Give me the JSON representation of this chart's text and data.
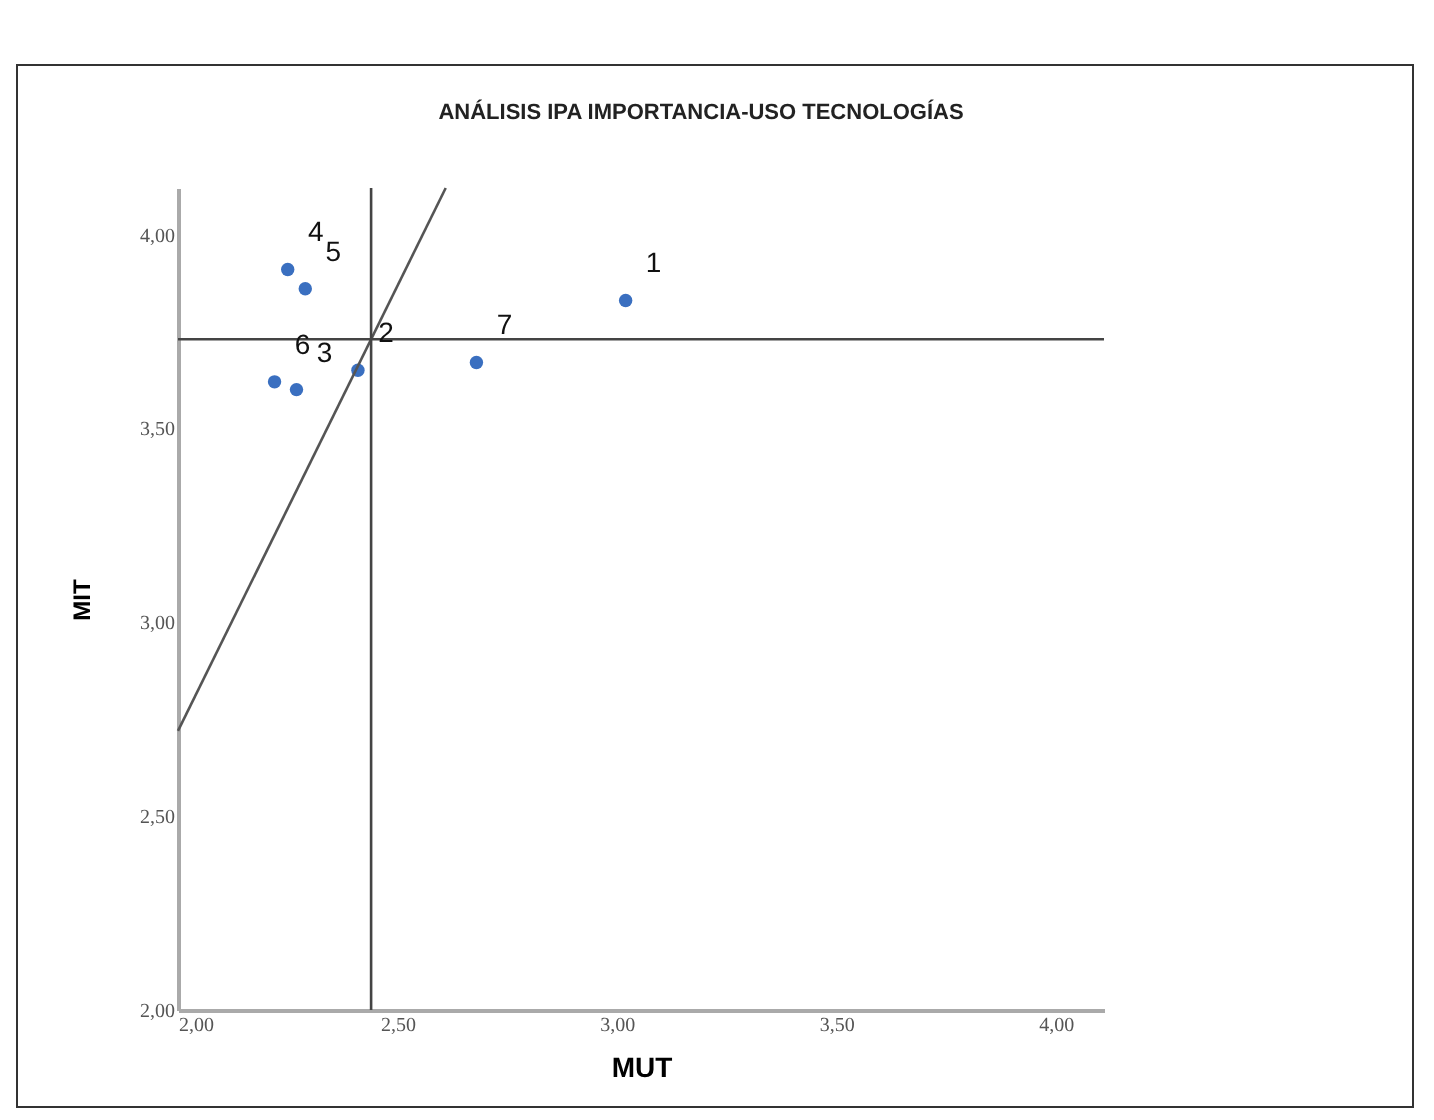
{
  "chart_data": {
    "type": "scatter",
    "title": "ANÁLISIS IPA IMPORTANCIA-USO TECNOLOGÍAS",
    "xlabel": "MUT",
    "ylabel": "MIT",
    "x": [
      3.02,
      2.41,
      2.27,
      2.25,
      2.29,
      2.22,
      2.68
    ],
    "series": [
      {
        "color": "#3a6fc0",
        "marker": "circle",
        "values": [
          3.83,
          3.65,
          3.6,
          3.91,
          3.86,
          3.62,
          3.67
        ]
      },
      {
        "type": "line",
        "color": "#555555",
        "x": [
          2.0,
          2.61
        ],
        "values": [
          2.72,
          4.12
        ]
      }
    ],
    "xlim": [
      2.0,
      4.11
    ],
    "ylim": [
      2.0,
      4.12
    ],
    "xticks": [
      {
        "value": 2,
        "label": "2,00"
      },
      {
        "value": 2.5,
        "label": "2,50"
      },
      {
        "value": 3,
        "label": "3,00"
      },
      {
        "value": 3.5,
        "label": "3,50"
      },
      {
        "value": 4,
        "label": "4,00"
      }
    ],
    "yticks": [
      {
        "value": 2,
        "label": "2,00"
      },
      {
        "value": 2.5,
        "label": "2,50"
      },
      {
        "value": 3,
        "label": "3,00"
      },
      {
        "value": 3.5,
        "label": "3,50"
      },
      {
        "value": 4,
        "label": "4,00"
      }
    ],
    "ref_lines": [
      {
        "axis": "x",
        "value": 2.44
      },
      {
        "axis": "y",
        "value": 3.73
      }
    ],
    "annotations": [
      {
        "text": "1",
        "x": 3.02,
        "y": 3.83
      },
      {
        "text": "2",
        "x": 2.41,
        "y": 3.65
      },
      {
        "text": "3",
        "x": 2.27,
        "y": 3.6
      },
      {
        "text": "4",
        "x": 2.25,
        "y": 3.91
      },
      {
        "text": "5",
        "x": 2.29,
        "y": 3.86
      },
      {
        "text": "6",
        "x": 2.22,
        "y": 3.62
      },
      {
        "text": "7",
        "x": 2.68,
        "y": 3.67
      }
    ],
    "grid": false
  }
}
